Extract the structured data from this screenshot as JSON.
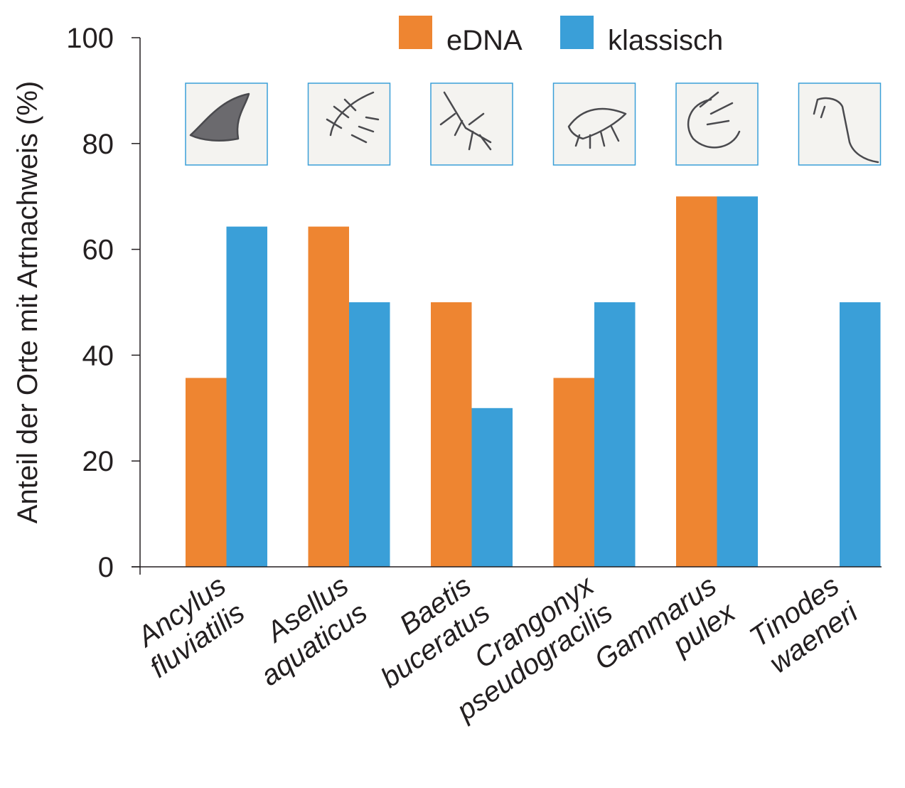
{
  "chart_data": {
    "type": "bar",
    "ylabel": "Anteil der Orte mit Artnachweis (%)",
    "xlabel": "",
    "ylim": [
      0,
      100
    ],
    "yticks": [
      0,
      20,
      40,
      60,
      80,
      100
    ],
    "grid": false,
    "legend_position": "top-right",
    "categories": [
      [
        "Ancylus",
        "fluviatilis"
      ],
      [
        "Asellus",
        "aquaticus"
      ],
      [
        "Baetis",
        "buceratus"
      ],
      [
        "Crangonyx",
        "pseudogracilis"
      ],
      [
        "Gammarus",
        "pulex"
      ],
      [
        "Tinodes",
        "waeneri"
      ]
    ],
    "icons": [
      "limpet-shell-icon",
      "water-louse-icon",
      "mayfly-larva-icon",
      "amphipod-crangonyx-icon",
      "amphipod-gammarus-icon",
      "caddisfly-larva-icon"
    ],
    "series": [
      {
        "name": "eDNA",
        "color": "#ee8531",
        "values": [
          35.7,
          64.3,
          50,
          35.7,
          70,
          0
        ]
      },
      {
        "name": "klassisch",
        "color": "#3a9fd8",
        "values": [
          64.3,
          50,
          30,
          50,
          70,
          50
        ]
      }
    ]
  }
}
